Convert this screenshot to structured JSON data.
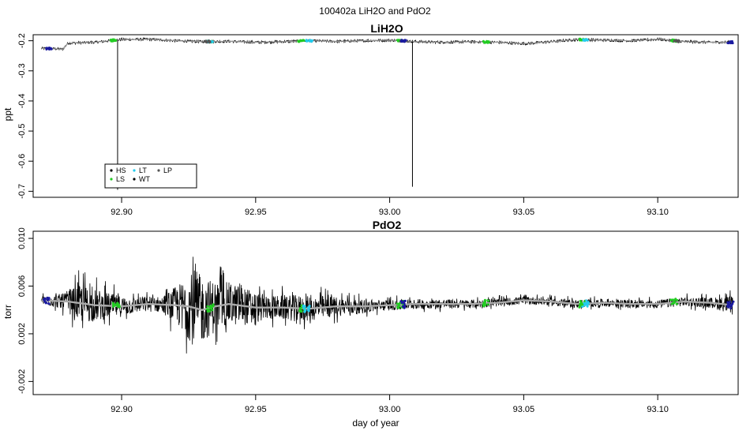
{
  "figure": {
    "supertitle": "100402a   LiH2O and PdO2"
  },
  "chart_data": [
    {
      "type": "line",
      "title": "LiH2O",
      "xlabel": "",
      "ylabel": "ppt",
      "xlim": [
        92.867,
        93.13
      ],
      "ylim": [
        -0.72,
        -0.18
      ],
      "xticks": [
        92.9,
        92.95,
        93.0,
        93.05,
        93.1
      ],
      "xtick_labels": [
        "92.90",
        "92.95",
        "93.00",
        "93.05",
        "93.10"
      ],
      "yticks": [
        -0.2,
        -0.3,
        -0.4,
        -0.5,
        -0.6,
        -0.7
      ],
      "ytick_labels": [
        "-0.2",
        "-0.3",
        "-0.4",
        "-0.5",
        "-0.6",
        "-0.7"
      ],
      "series": [
        {
          "values_xy": [
            [
              92.87,
              -0.225
            ],
            [
              92.878,
              -0.228
            ],
            [
              92.88,
              -0.208
            ],
            [
              92.89,
              -0.205
            ],
            [
              92.9,
              -0.196
            ],
            [
              92.91,
              -0.195
            ],
            [
              92.92,
              -0.2
            ],
            [
              92.93,
              -0.203
            ],
            [
              92.94,
              -0.202
            ],
            [
              92.95,
              -0.205
            ],
            [
              92.96,
              -0.203
            ],
            [
              92.97,
              -0.2
            ],
            [
              92.98,
              -0.202
            ],
            [
              92.99,
              -0.2
            ],
            [
              93.0,
              -0.198
            ],
            [
              93.01,
              -0.203
            ],
            [
              93.02,
              -0.205
            ],
            [
              93.03,
              -0.203
            ],
            [
              93.04,
              -0.205
            ],
            [
              93.05,
              -0.21
            ],
            [
              93.06,
              -0.203
            ],
            [
              93.07,
              -0.196
            ],
            [
              93.08,
              -0.198
            ],
            [
              93.09,
              -0.2
            ],
            [
              93.1,
              -0.195
            ],
            [
              93.11,
              -0.203
            ],
            [
              93.12,
              -0.205
            ],
            [
              93.128,
              -0.205
            ]
          ]
        }
      ],
      "spikes": [
        [
          92.8985,
          -0.695
        ],
        [
          93.0085,
          -0.685
        ]
      ],
      "markers": [
        {
          "label": "HS",
          "color": "#000000",
          "x": []
        },
        {
          "label": "LS",
          "color": "#22cc22",
          "x": [
            92.897,
            92.933,
            92.967,
            93.004,
            93.036,
            93.072,
            93.106
          ]
        },
        {
          "label": "LT",
          "color": "#22ccee",
          "x": [
            92.933,
            92.97,
            93.073
          ]
        },
        {
          "label": "WT",
          "color": "#000000",
          "x": []
        },
        {
          "label": "LP",
          "color": "#555555",
          "x": [
            92.932,
            93.005,
            93.107
          ]
        },
        {
          "label": "",
          "color": "#1a1aa0",
          "x": [
            92.873,
            93.005,
            93.127
          ]
        }
      ],
      "legend": {
        "placement": "bottom-left",
        "entries": [
          "HS",
          "LS",
          "LT",
          "WT",
          "LP"
        ]
      }
    },
    {
      "type": "line",
      "title": "PdO2",
      "xlabel": "day of year",
      "ylabel": "torr",
      "xlim": [
        92.867,
        93.13
      ],
      "ylim": [
        -0.0031,
        0.0106
      ],
      "xticks": [
        92.9,
        92.95,
        93.0,
        93.05,
        93.1
      ],
      "xtick_labels": [
        "92.90",
        "92.95",
        "93.00",
        "93.05",
        "93.10"
      ],
      "yticks": [
        -0.002,
        0.002,
        0.006,
        0.01
      ],
      "ytick_labels": [
        "-0.002",
        "0.002",
        "0.006",
        "0.010"
      ],
      "smooth_color": "#aaaaaa",
      "series": [
        {
          "values_xy": [
            [
              92.87,
              0.0048
            ],
            [
              92.88,
              0.0047
            ],
            [
              92.89,
              0.0044
            ],
            [
              92.9,
              0.0043
            ],
            [
              92.91,
              0.0045
            ],
            [
              92.92,
              0.0044
            ],
            [
              92.925,
              0.0043
            ],
            [
              92.93,
              0.004
            ],
            [
              92.935,
              0.0043
            ],
            [
              92.94,
              0.0045
            ],
            [
              92.95,
              0.0042
            ],
            [
              92.96,
              0.0042
            ],
            [
              92.97,
              0.0041
            ],
            [
              92.98,
              0.0043
            ],
            [
              92.99,
              0.0043
            ],
            [
              93.0,
              0.0044
            ],
            [
              93.01,
              0.0045
            ],
            [
              93.02,
              0.0045
            ],
            [
              93.03,
              0.0045
            ],
            [
              93.04,
              0.0046
            ],
            [
              93.05,
              0.0048
            ],
            [
              93.06,
              0.0047
            ],
            [
              93.07,
              0.0045
            ],
            [
              93.08,
              0.0046
            ],
            [
              93.09,
              0.0045
            ],
            [
              93.1,
              0.0045
            ],
            [
              93.11,
              0.0047
            ],
            [
              93.12,
              0.0046
            ],
            [
              93.128,
              0.0044
            ]
          ]
        }
      ],
      "noise_envelope": [
        [
          92.87,
          0.0006
        ],
        [
          92.878,
          0.0012
        ],
        [
          92.885,
          0.003
        ],
        [
          92.895,
          0.002
        ],
        [
          92.905,
          0.0012
        ],
        [
          92.915,
          0.0012
        ],
        [
          92.922,
          0.0035
        ],
        [
          92.927,
          0.006
        ],
        [
          92.932,
          0.0045
        ],
        [
          92.938,
          0.0035
        ],
        [
          92.945,
          0.003
        ],
        [
          92.955,
          0.0018
        ],
        [
          92.965,
          0.002
        ],
        [
          92.975,
          0.0018
        ],
        [
          92.99,
          0.001
        ],
        [
          93.0,
          0.0008
        ],
        [
          93.02,
          0.0007
        ],
        [
          93.04,
          0.0006
        ],
        [
          93.06,
          0.0006
        ],
        [
          93.08,
          0.0006
        ],
        [
          93.1,
          0.0006
        ],
        [
          93.12,
          0.0008
        ],
        [
          93.128,
          0.0014
        ]
      ],
      "markers": [
        {
          "label": "LS",
          "color": "#22cc22",
          "x": [
            92.898,
            92.933,
            92.967,
            93.004,
            93.036,
            93.072,
            93.106
          ]
        },
        {
          "label": "LT",
          "color": "#22ccee",
          "x": [
            92.969,
            93.073
          ]
        },
        {
          "label": "",
          "color": "#1a1aa0",
          "x": [
            92.872,
            93.005,
            93.127
          ]
        }
      ]
    }
  ]
}
